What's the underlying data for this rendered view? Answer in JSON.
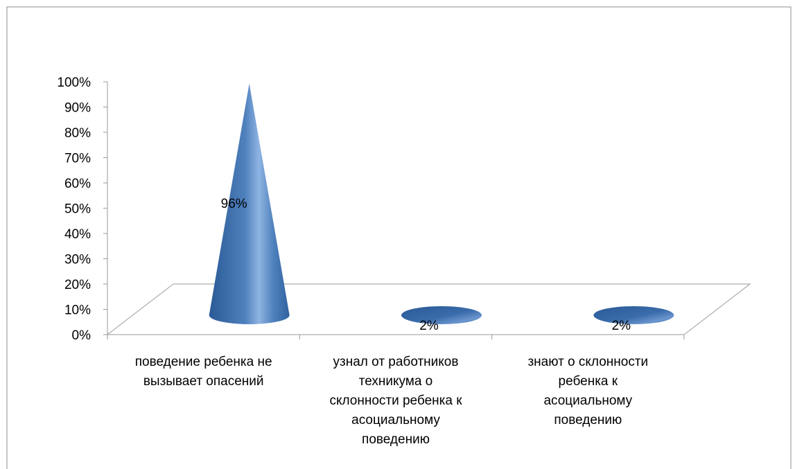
{
  "chart_data": {
    "type": "bar",
    "shape": "cone-3d",
    "categories": [
      [
        "поведение ребенка не",
        "вызывает опасений"
      ],
      [
        "узнал от работников",
        "техникума о",
        "склонности ребенка к",
        "асоциальному",
        "поведению"
      ],
      [
        "знают о склонности",
        "ребенка к",
        "асоциальному",
        "поведению"
      ]
    ],
    "values": [
      96,
      2,
      2
    ],
    "data_labels": [
      "96%",
      "2%",
      "2%"
    ],
    "y_ticks": [
      "0%",
      "10%",
      "20%",
      "30%",
      "40%",
      "50%",
      "60%",
      "70%",
      "80%",
      "90%",
      "100%"
    ],
    "ylim": [
      0,
      100
    ],
    "title": "",
    "xlabel": "",
    "ylabel": "",
    "grid": false,
    "legend": "none",
    "colors": {
      "cone_dark": "#2a5a96",
      "cone_mid": "#4f81bd",
      "cone_light": "#8fb4e3",
      "axis": "#9a9a9a",
      "frame": "#8c8c8c",
      "text": "#000000"
    }
  }
}
